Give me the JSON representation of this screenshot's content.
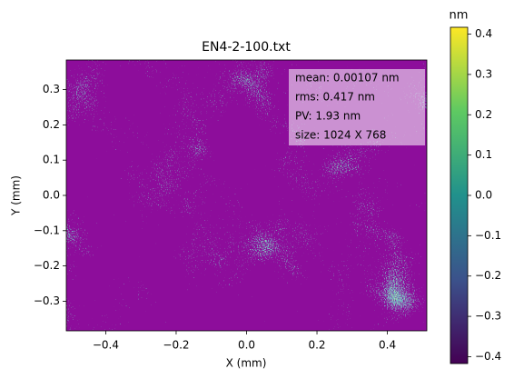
{
  "chart_data": {
    "type": "heatmap",
    "title": "EN4-2-100.txt",
    "x_label": "X (mm)",
    "y_label": "Y (mm)",
    "xlim": [
      -0.512,
      0.512
    ],
    "ylim": [
      -0.384,
      0.384
    ],
    "xticks": [
      {
        "value": -0.4,
        "label": "−0.4"
      },
      {
        "value": -0.2,
        "label": "−0.2"
      },
      {
        "value": 0,
        "label": "0.0"
      },
      0.2,
      0.4
    ],
    "yticks": [
      {
        "value": -0.3,
        "label": "−0.3"
      },
      {
        "value": -0.2,
        "label": "−0.2"
      },
      {
        "value": -0.1,
        "label": "−0.1"
      },
      {
        "value": 0,
        "label": "0.0"
      },
      0.1,
      0.2,
      0.3
    ],
    "colormap": "viridis",
    "colorbar_label": "nm",
    "clim": [
      -0.417,
      0.417
    ],
    "cticks": [
      {
        "value": -0.4,
        "label": "−0.4"
      },
      {
        "value": -0.3,
        "label": "−0.3"
      },
      {
        "value": -0.2,
        "label": "−0.2"
      },
      {
        "value": -0.1,
        "label": "−0.1"
      },
      {
        "value": 0,
        "label": "0.0"
      },
      0.1,
      0.2,
      0.3,
      0.4
    ],
    "annotations": [
      "mean: 0.00107 nm",
      "rms: 0.417 nm",
      "PV: 1.93 nm",
      "size: 1024 X 768"
    ]
  }
}
